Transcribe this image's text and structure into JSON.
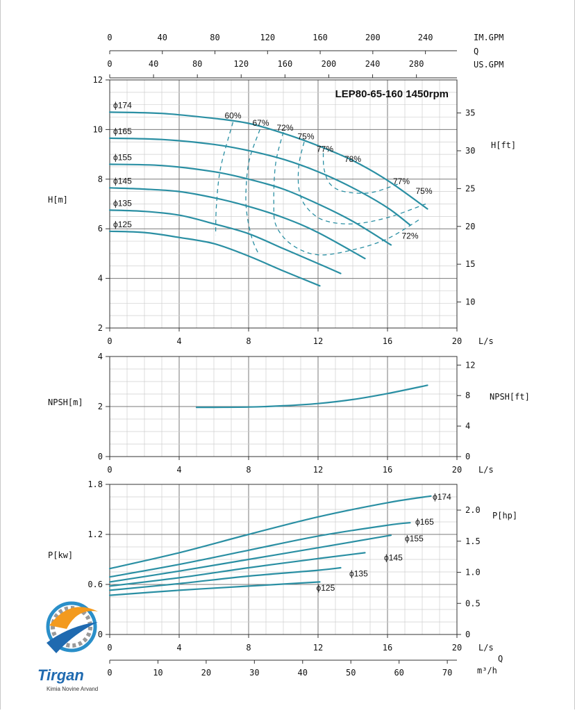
{
  "logo": {
    "brand": "Tirgan",
    "tagline": "Kimia Novine Arvand"
  },
  "chart_data": [
    {
      "panel": "head",
      "type": "line",
      "title": "LEP80-65-160 1450rpm",
      "xlabel": "L/s",
      "ylabel": "H[m]",
      "ylabel_right": "H[ft]",
      "xlim": [
        0,
        20
      ],
      "ylim": [
        2,
        12
      ],
      "y_ticks": [
        2,
        4,
        6,
        8,
        10,
        12
      ],
      "x_ticks": [
        0,
        4,
        8,
        12,
        16,
        20
      ],
      "right_ticks_ft": [
        10,
        15,
        20,
        25,
        30,
        35
      ],
      "top_axes": [
        {
          "label": "IM.GPM",
          "ticks": [
            0,
            40,
            80,
            120,
            160,
            200,
            240
          ],
          "per_ls": 13.198
        },
        {
          "label": "Q",
          "ticks": [],
          "per_ls": 0
        },
        {
          "label": "US.GPM",
          "ticks": [
            0,
            40,
            80,
            120,
            160,
            200,
            240,
            280
          ],
          "per_ls": 15.85
        }
      ],
      "grid": true,
      "series": [
        {
          "name": "ϕ174",
          "x": [
            0,
            3,
            6,
            8,
            10,
            12,
            14,
            16,
            18.3
          ],
          "y": [
            10.7,
            10.65,
            10.45,
            10.25,
            9.85,
            9.35,
            8.75,
            7.95,
            6.8
          ]
        },
        {
          "name": "ϕ165",
          "x": [
            0,
            3,
            6,
            8,
            10,
            12,
            14,
            16,
            17.3
          ],
          "y": [
            9.65,
            9.6,
            9.4,
            9.15,
            8.8,
            8.3,
            7.65,
            6.85,
            6.15
          ]
        },
        {
          "name": "ϕ155",
          "x": [
            0,
            3,
            6,
            8,
            10,
            12,
            14,
            16.2
          ],
          "y": [
            8.6,
            8.55,
            8.3,
            8.0,
            7.6,
            7.0,
            6.3,
            5.35
          ]
        },
        {
          "name": "ϕ145",
          "x": [
            0,
            2,
            4,
            6,
            8,
            10,
            12,
            14.7
          ],
          "y": [
            7.65,
            7.6,
            7.5,
            7.25,
            6.9,
            6.45,
            5.85,
            4.8
          ]
        },
        {
          "name": "ϕ135",
          "x": [
            0,
            2,
            4,
            6,
            8,
            10,
            12,
            13.3
          ],
          "y": [
            6.75,
            6.7,
            6.55,
            6.2,
            5.8,
            5.2,
            4.6,
            4.2
          ]
        },
        {
          "name": "ϕ125",
          "x": [
            0,
            2,
            4,
            6,
            8,
            10,
            12.1
          ],
          "y": [
            5.9,
            5.85,
            5.65,
            5.4,
            4.9,
            4.3,
            3.7
          ]
        }
      ],
      "efficiency_curves": [
        {
          "label": "60%",
          "x": [
            7.1,
            6.4,
            6.15,
            6.1
          ],
          "y": [
            10.3,
            8.5,
            7.0,
            5.75
          ]
        },
        {
          "label": "67%",
          "x": [
            8.65,
            8.05,
            7.85,
            7.9,
            8.2,
            8.6
          ],
          "y": [
            10.0,
            8.8,
            7.6,
            6.6,
            5.6,
            4.95
          ]
        },
        {
          "label": "72%",
          "x": [
            10.0,
            9.55,
            9.45,
            9.6,
            10.5,
            12,
            14,
            16,
            17.9
          ],
          "y": [
            9.9,
            8.6,
            7.0,
            6.1,
            5.35,
            4.95,
            5.15,
            5.6,
            6.4
          ]
        },
        {
          "label": "75%",
          "x": [
            11.2,
            10.9,
            10.9,
            11.3,
            12.3,
            14,
            16,
            18.2
          ],
          "y": [
            9.5,
            8.6,
            7.6,
            6.9,
            6.35,
            6.2,
            6.45,
            7.0
          ]
        },
        {
          "label": "77%",
          "x": [
            12.3,
            12.35,
            12.7,
            13.5,
            15,
            16.6
          ],
          "y": [
            9.05,
            8.4,
            7.8,
            7.5,
            7.45,
            7.8
          ]
        }
      ],
      "efficiency_labels": [
        {
          "text": "60%",
          "x": 7.1,
          "y": 10.45
        },
        {
          "text": "67%",
          "x": 8.7,
          "y": 10.15
        },
        {
          "text": "72%",
          "x": 10.1,
          "y": 9.95
        },
        {
          "text": "75%",
          "x": 11.3,
          "y": 9.6
        },
        {
          "text": "77%",
          "x": 12.4,
          "y": 9.1
        },
        {
          "text": "78%",
          "x": 14.0,
          "y": 8.7
        },
        {
          "text": "77%",
          "x": 16.8,
          "y": 7.8
        },
        {
          "text": "75%",
          "x": 18.1,
          "y": 7.4
        },
        {
          "text": "72%",
          "x": 17.3,
          "y": 5.6
        }
      ]
    },
    {
      "panel": "npsh",
      "type": "line",
      "xlabel": "L/s",
      "ylabel": "NPSH[m]",
      "ylabel_right": "NPSH[ft]",
      "xlim": [
        0,
        20
      ],
      "ylim": [
        0,
        4
      ],
      "y_ticks": [
        0,
        2,
        4
      ],
      "x_ticks": [
        0,
        4,
        8,
        12,
        16,
        20
      ],
      "right_ticks_ft": [
        0,
        4,
        8,
        12
      ],
      "grid": true,
      "series": [
        {
          "name": "NPSH",
          "x": [
            5,
            6,
            8,
            10,
            12,
            14,
            16,
            18.3
          ],
          "y": [
            1.97,
            1.97,
            1.98,
            2.03,
            2.12,
            2.28,
            2.52,
            2.85
          ]
        }
      ]
    },
    {
      "panel": "power",
      "type": "line",
      "xlabel": "L/s",
      "ylabel": "P[kw]",
      "ylabel_right": "P[hp]",
      "xlim": [
        0,
        20
      ],
      "ylim": [
        0,
        1.8
      ],
      "y_ticks": [
        0,
        0.6,
        1.2,
        1.8
      ],
      "y_tick_labels": [
        "0",
        "0.6",
        "1.2",
        "1.8"
      ],
      "x_ticks": [
        0,
        4,
        8,
        12,
        16,
        20
      ],
      "right_ticks_hp": [
        0,
        0.5,
        1.0,
        1.5,
        2.0
      ],
      "right_tick_labels": [
        "0",
        "0.5",
        "1.0",
        "1.5",
        "2.0"
      ],
      "bottom_axis": {
        "label": "m³/h",
        "ticks": [
          0,
          10,
          20,
          30,
          40,
          50,
          60,
          70
        ],
        "per_ls": 3.6
      },
      "q_label": "Q",
      "grid": true,
      "series": [
        {
          "name": "ϕ174",
          "x": [
            0,
            4,
            8,
            12,
            16,
            18.5
          ],
          "y": [
            0.79,
            0.98,
            1.2,
            1.41,
            1.58,
            1.66
          ]
        },
        {
          "name": "ϕ165",
          "x": [
            0,
            4,
            8,
            12,
            16,
            17.3
          ],
          "y": [
            0.69,
            0.84,
            1.01,
            1.18,
            1.31,
            1.34
          ]
        },
        {
          "name": "ϕ155",
          "x": [
            0,
            4,
            8,
            12,
            16.2
          ],
          "y": [
            0.63,
            0.76,
            0.9,
            1.04,
            1.19
          ]
        },
        {
          "name": "ϕ145",
          "x": [
            0,
            4,
            8,
            12,
            14.7
          ],
          "y": [
            0.58,
            0.68,
            0.8,
            0.91,
            0.98
          ]
        },
        {
          "name": "ϕ135",
          "x": [
            0,
            4,
            8,
            12,
            13.3
          ],
          "y": [
            0.53,
            0.61,
            0.7,
            0.77,
            0.8
          ]
        },
        {
          "name": "ϕ125",
          "x": [
            0,
            4,
            8,
            12.1
          ],
          "y": [
            0.47,
            0.53,
            0.58,
            0.63
          ]
        }
      ],
      "series_label_pos": [
        {
          "x": 18.6,
          "y": 1.65
        },
        {
          "x": 17.6,
          "y": 1.35
        },
        {
          "x": 17.0,
          "y": 1.15
        },
        {
          "x": 15.8,
          "y": 0.92
        },
        {
          "x": 13.8,
          "y": 0.73
        },
        {
          "x": 11.9,
          "y": 0.56
        }
      ]
    }
  ]
}
